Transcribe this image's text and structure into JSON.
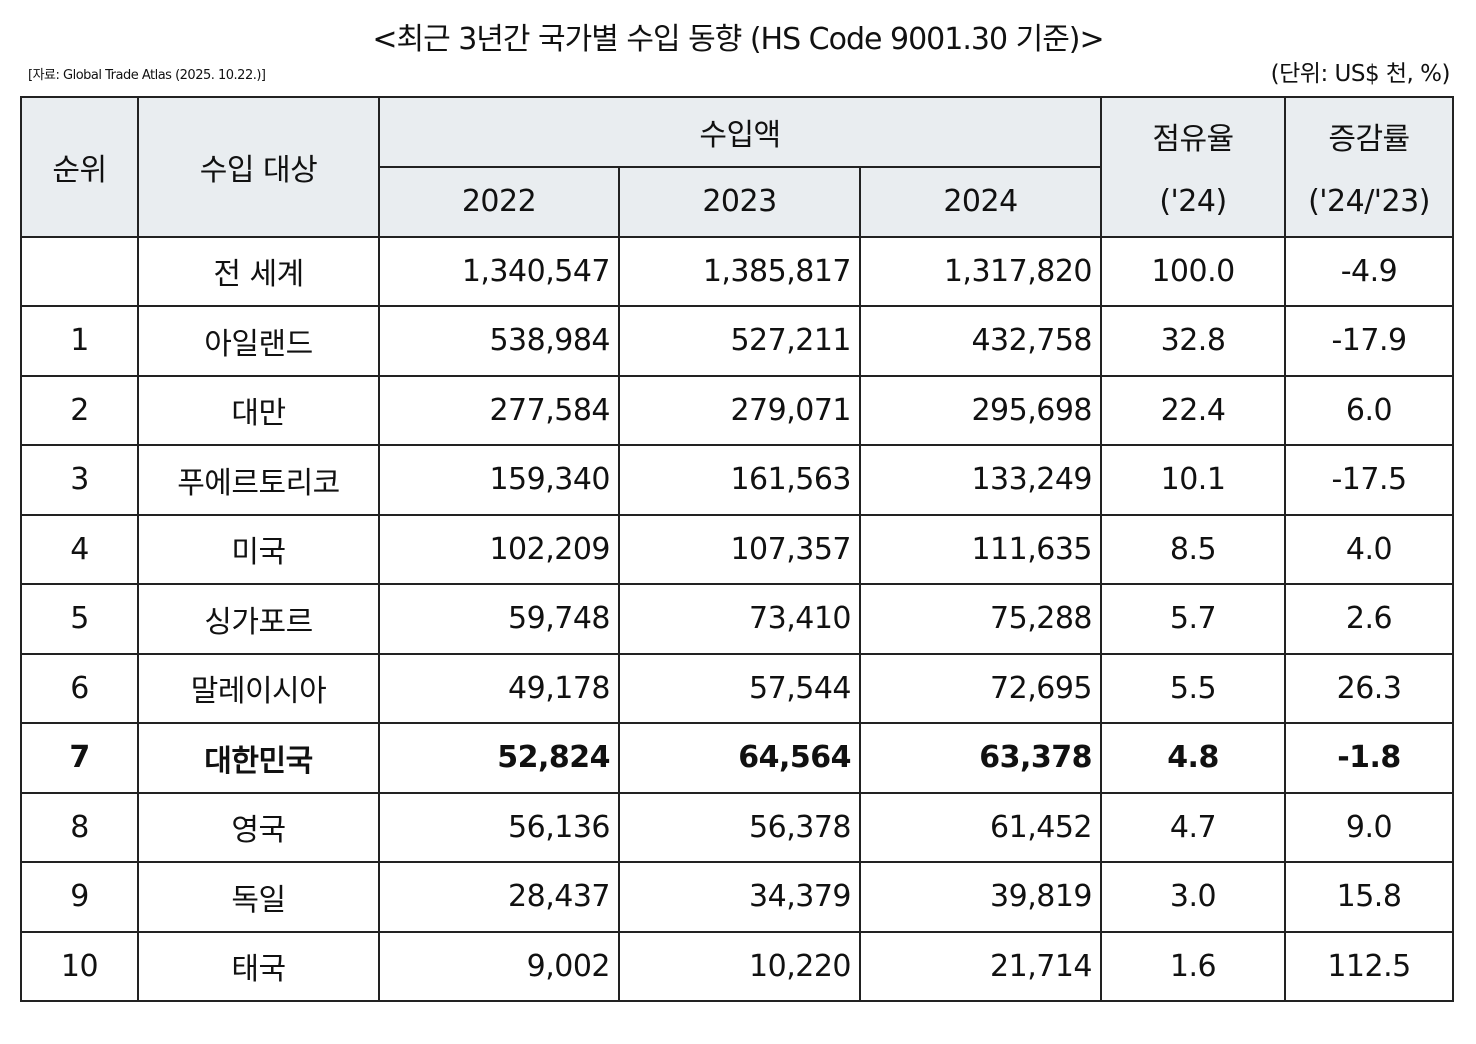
{
  "title": "<최근 3년간 국가별 수입 동향 (HS Code 9001.30 기준)>",
  "source": "[자료: Global Trade Atlas (2025. 10.22.)]",
  "unit": "(단위: US$ 천, %)",
  "headers": {
    "rank": "순위",
    "target": "수입 대상",
    "amount": "수입액",
    "years": [
      "2022",
      "2023",
      "2024"
    ],
    "share": "점유율",
    "share_sub": "('24)",
    "growth": "증감률",
    "growth_sub": "('24/'23)"
  },
  "rows": [
    {
      "rank": "",
      "country": "전 세계",
      "v2022": "1,340,547",
      "v2023": "1,385,817",
      "v2024": "1,317,820",
      "share": "100.0",
      "growth": "-4.9"
    },
    {
      "rank": "1",
      "country": "아일랜드",
      "v2022": "538,984",
      "v2023": "527,211",
      "v2024": "432,758",
      "share": "32.8",
      "growth": "-17.9"
    },
    {
      "rank": "2",
      "country": "대만",
      "v2022": "277,584",
      "v2023": "279,071",
      "v2024": "295,698",
      "share": "22.4",
      "growth": "6.0"
    },
    {
      "rank": "3",
      "country": "푸에르토리코",
      "v2022": "159,340",
      "v2023": "161,563",
      "v2024": "133,249",
      "share": "10.1",
      "growth": "-17.5"
    },
    {
      "rank": "4",
      "country": "미국",
      "v2022": "102,209",
      "v2023": "107,357",
      "v2024": "111,635",
      "share": "8.5",
      "growth": "4.0"
    },
    {
      "rank": "5",
      "country": "싱가포르",
      "v2022": "59,748",
      "v2023": "73,410",
      "v2024": "75,288",
      "share": "5.7",
      "growth": "2.6"
    },
    {
      "rank": "6",
      "country": "말레이시아",
      "v2022": "49,178",
      "v2023": "57,544",
      "v2024": "72,695",
      "share": "5.5",
      "growth": "26.3"
    },
    {
      "rank": "7",
      "country": "대한민국",
      "v2022": "52,824",
      "v2023": "64,564",
      "v2024": "63,378",
      "share": "4.8",
      "growth": "-1.8",
      "highlight": true
    },
    {
      "rank": "8",
      "country": "영국",
      "v2022": "56,136",
      "v2023": "56,378",
      "v2024": "61,452",
      "share": "4.7",
      "growth": "9.0"
    },
    {
      "rank": "9",
      "country": "독일",
      "v2022": "28,437",
      "v2023": "34,379",
      "v2024": "39,819",
      "share": "3.0",
      "growth": "15.8"
    },
    {
      "rank": "10",
      "country": "태국",
      "v2022": "9,002",
      "v2023": "10,220",
      "v2024": "21,714",
      "share": "1.6",
      "growth": "112.5"
    }
  ]
}
